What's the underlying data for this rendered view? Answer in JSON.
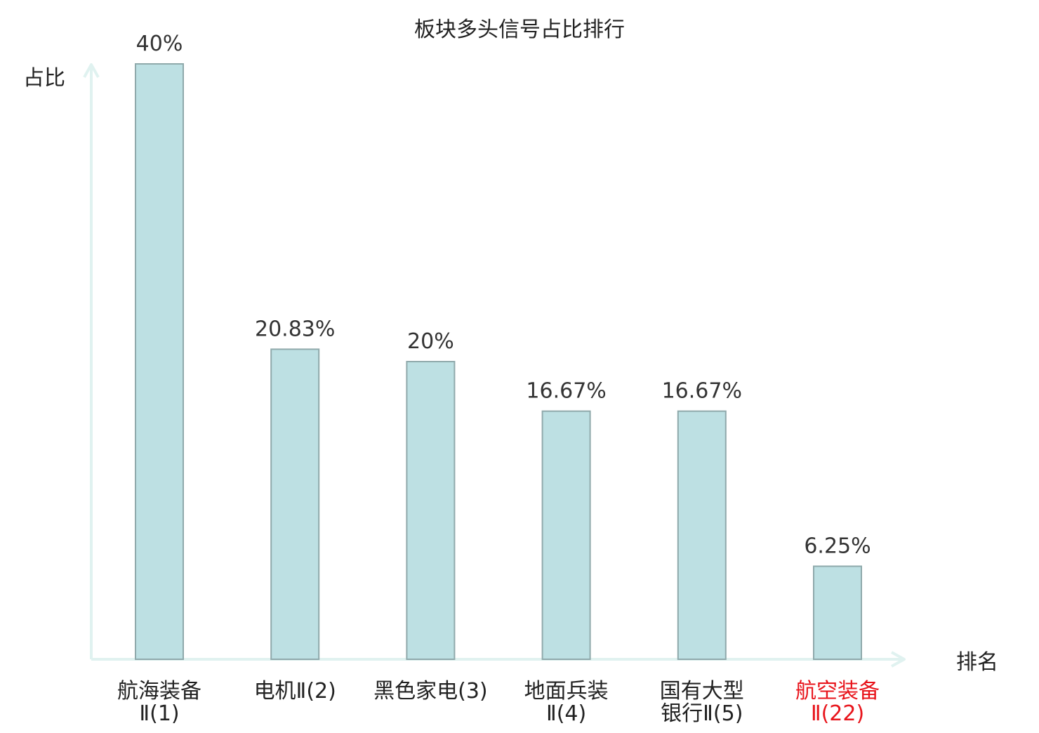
{
  "chart_data": {
    "type": "bar",
    "title": "板块多头信号占比排行",
    "ylabel": "占比",
    "xlabel": "排名",
    "categories": [
      {
        "lines": [
          "航海装备",
          "Ⅱ(1)"
        ],
        "highlight": false
      },
      {
        "lines": [
          "电机Ⅱ(2)"
        ],
        "highlight": false
      },
      {
        "lines": [
          "黑色家电(3)"
        ],
        "highlight": false
      },
      {
        "lines": [
          "地面兵装",
          "Ⅱ(4)"
        ],
        "highlight": false
      },
      {
        "lines": [
          "国有大型",
          "银行Ⅱ(5)"
        ],
        "highlight": false
      },
      {
        "lines": [
          "航空装备",
          "Ⅱ(22)"
        ],
        "highlight": true
      }
    ],
    "values": [
      40,
      20.83,
      20,
      16.67,
      16.67,
      6.25
    ],
    "value_labels": [
      "40%",
      "20.83%",
      "20%",
      "16.67%",
      "16.67%",
      "6.25%"
    ],
    "ylim": [
      0,
      40
    ],
    "grid": false,
    "colors": {
      "bar_fill": "#bde0e3",
      "bar_stroke": "#8fa9ab",
      "axis": "#e0f2f0",
      "text": "#222222",
      "value_label": "#333333",
      "highlight": "#e8141b"
    }
  }
}
